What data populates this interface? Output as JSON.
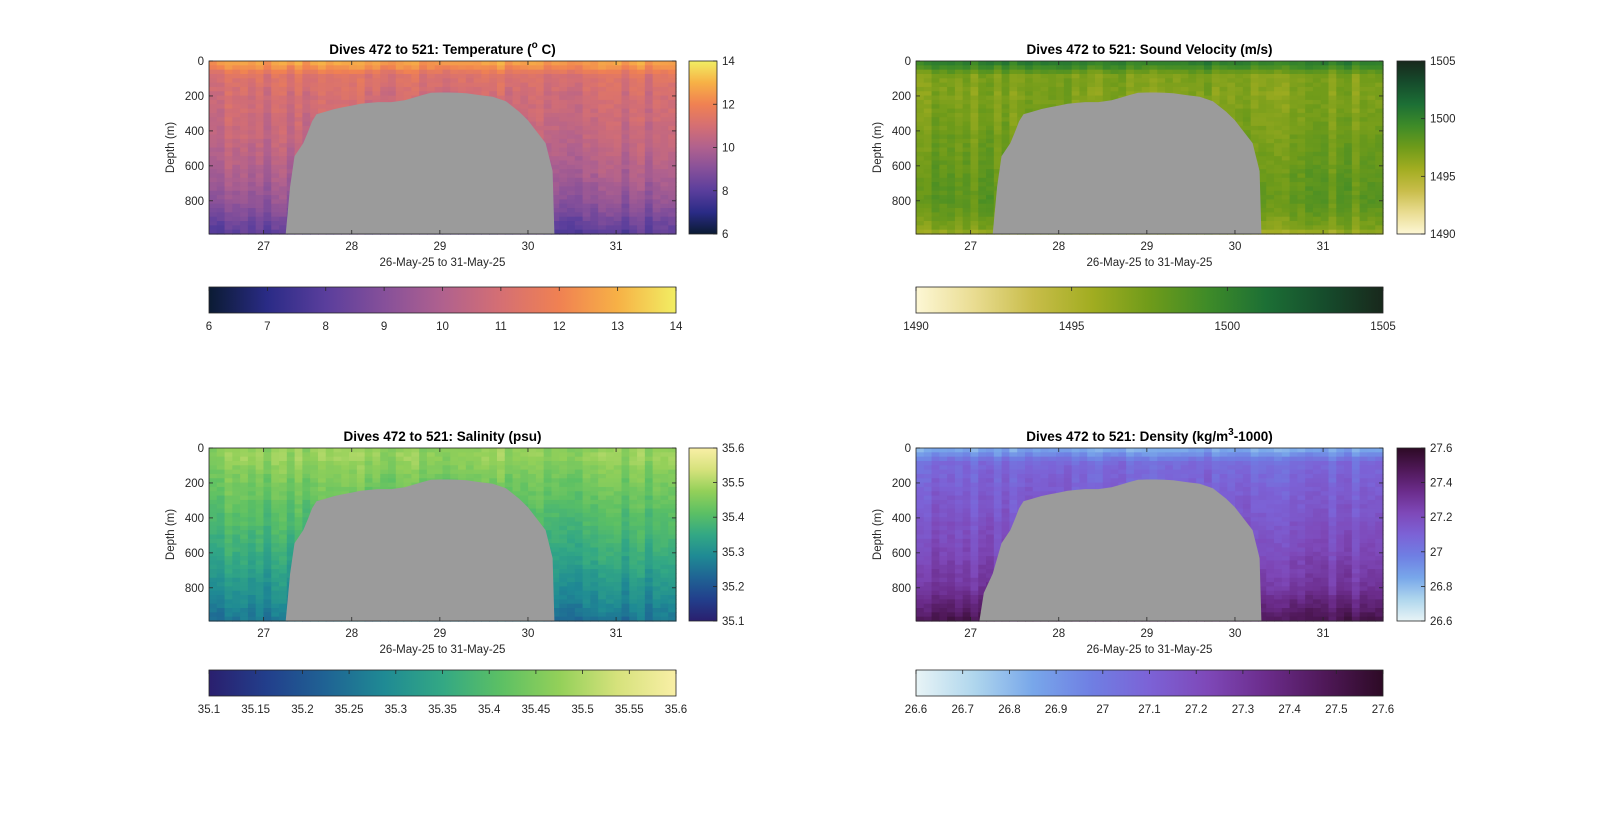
{
  "figure": {
    "background": "#ffffff",
    "seafloor_color": "#9b9b9b"
  },
  "chart_data": [
    {
      "type": "heatmap",
      "title": "Dives 472 to 521: Temperature (",
      "title_super": "o",
      "title_tail": " C)",
      "xlabel": "26-May-25 to 31-May-25",
      "ylabel": "Depth (m)",
      "x_ticks": [
        "27",
        "28",
        "29",
        "30",
        "31"
      ],
      "x_tick_values": [
        27,
        28,
        29,
        30,
        31
      ],
      "xlim": [
        26.38,
        31.68
      ],
      "y_ticks": [
        "0",
        "200",
        "400",
        "600",
        "800"
      ],
      "y_tick_values": [
        0,
        200,
        400,
        600,
        800
      ],
      "ylim": [
        0,
        990
      ],
      "colormap": [
        "#0b1b33",
        "#2a2b86",
        "#5a3e9c",
        "#86509a",
        "#b0618e",
        "#d56f73",
        "#f08152",
        "#f7b146",
        "#f1ee63"
      ],
      "clim": [
        6,
        14
      ],
      "colorbar_side": {
        "ticks": [
          "6",
          "8",
          "10",
          "12",
          "14"
        ],
        "values": [
          6,
          8,
          10,
          12,
          14
        ]
      },
      "colorbar_bottom": {
        "ticks": [
          "6",
          "7",
          "8",
          "9",
          "10",
          "11",
          "12",
          "13",
          "14"
        ],
        "values": [
          6,
          7,
          8,
          9,
          10,
          11,
          12,
          13,
          14
        ]
      },
      "profile": [
        [
          0,
          12.8
        ],
        [
          30,
          12.4
        ],
        [
          80,
          11.3
        ],
        [
          200,
          10.9
        ],
        [
          400,
          10.6
        ],
        [
          600,
          10.1
        ],
        [
          800,
          9.3
        ],
        [
          900,
          8.6
        ],
        [
          990,
          8.0
        ]
      ],
      "bathymetry": [
        [
          27.25,
          990
        ],
        [
          27.3,
          720
        ],
        [
          27.35,
          545
        ],
        [
          27.45,
          470
        ],
        [
          27.5,
          410
        ],
        [
          27.55,
          345
        ],
        [
          27.6,
          305
        ],
        [
          27.7,
          290
        ],
        [
          27.8,
          275
        ],
        [
          27.9,
          265
        ],
        [
          28.0,
          255
        ],
        [
          28.1,
          245
        ],
        [
          28.2,
          240
        ],
        [
          28.3,
          235
        ],
        [
          28.45,
          235
        ],
        [
          28.6,
          225
        ],
        [
          28.7,
          210
        ],
        [
          28.8,
          195
        ],
        [
          28.9,
          182
        ],
        [
          29.0,
          180
        ],
        [
          29.1,
          180
        ],
        [
          29.2,
          182
        ],
        [
          29.3,
          185
        ],
        [
          29.45,
          195
        ],
        [
          29.6,
          205
        ],
        [
          29.75,
          230
        ],
        [
          29.9,
          290
        ],
        [
          30.0,
          340
        ],
        [
          30.1,
          405
        ],
        [
          30.2,
          470
        ],
        [
          30.28,
          630
        ],
        [
          30.3,
          990
        ]
      ]
    },
    {
      "type": "heatmap",
      "title": "Dives 472 to 521: Sound Velocity (m/s)",
      "title_super": "",
      "title_tail": "",
      "xlabel": "26-May-25 to 31-May-25",
      "ylabel": "Depth (m)",
      "x_ticks": [
        "27",
        "28",
        "29",
        "30",
        "31"
      ],
      "x_tick_values": [
        27,
        28,
        29,
        30,
        31
      ],
      "xlim": [
        26.38,
        31.68
      ],
      "y_ticks": [
        "0",
        "200",
        "400",
        "600",
        "800"
      ],
      "y_tick_values": [
        0,
        200,
        400,
        600,
        800
      ],
      "ylim": [
        0,
        990
      ],
      "colormap": [
        "#fdf7d5",
        "#e9dc91",
        "#c8bd4a",
        "#a2ad21",
        "#6f9b1a",
        "#3e8b28",
        "#1c6f35",
        "#164c2c",
        "#18281c"
      ],
      "clim": [
        1490,
        1505
      ],
      "colorbar_side": {
        "ticks": [
          "1490",
          "1495",
          "1500",
          "1505"
        ],
        "values": [
          1490,
          1495,
          1500,
          1505
        ]
      },
      "colorbar_bottom": {
        "ticks": [
          "1490",
          "1495",
          "1500",
          "1505"
        ],
        "values": [
          1490,
          1495,
          1500,
          1505
        ]
      },
      "profile": [
        [
          0,
          1500.5
        ],
        [
          30,
          1499.5
        ],
        [
          80,
          1497.0
        ],
        [
          200,
          1496.8
        ],
        [
          400,
          1497.3
        ],
        [
          600,
          1497.8
        ],
        [
          800,
          1498.2
        ],
        [
          950,
          1497.0
        ],
        [
          990,
          1495.5
        ]
      ],
      "bathymetry": [
        [
          27.25,
          990
        ],
        [
          27.3,
          720
        ],
        [
          27.35,
          545
        ],
        [
          27.45,
          470
        ],
        [
          27.5,
          410
        ],
        [
          27.55,
          345
        ],
        [
          27.6,
          305
        ],
        [
          27.7,
          290
        ],
        [
          27.8,
          275
        ],
        [
          27.9,
          265
        ],
        [
          28.0,
          255
        ],
        [
          28.1,
          245
        ],
        [
          28.2,
          240
        ],
        [
          28.3,
          235
        ],
        [
          28.45,
          235
        ],
        [
          28.6,
          225
        ],
        [
          28.7,
          210
        ],
        [
          28.8,
          195
        ],
        [
          28.9,
          182
        ],
        [
          29.0,
          180
        ],
        [
          29.1,
          180
        ],
        [
          29.2,
          182
        ],
        [
          29.3,
          185
        ],
        [
          29.45,
          195
        ],
        [
          29.6,
          205
        ],
        [
          29.75,
          230
        ],
        [
          29.9,
          290
        ],
        [
          30.0,
          340
        ],
        [
          30.1,
          405
        ],
        [
          30.2,
          470
        ],
        [
          30.28,
          630
        ],
        [
          30.3,
          990
        ]
      ]
    },
    {
      "type": "heatmap",
      "title": "Dives 472 to 521: Salinity (psu)",
      "title_super": "",
      "title_tail": "",
      "xlabel": "26-May-25 to 31-May-25",
      "ylabel": "Depth (m)",
      "x_ticks": [
        "27",
        "28",
        "29",
        "30",
        "31"
      ],
      "x_tick_values": [
        27,
        28,
        29,
        30,
        31
      ],
      "xlim": [
        26.38,
        31.68
      ],
      "y_ticks": [
        "0",
        "200",
        "400",
        "600",
        "800"
      ],
      "y_tick_values": [
        0,
        200,
        400,
        600,
        800
      ],
      "ylim": [
        0,
        990
      ],
      "colormap": [
        "#2a1f6e",
        "#223f8c",
        "#1f6394",
        "#1f8a94",
        "#33a884",
        "#5cc064",
        "#93d059",
        "#d6e27c",
        "#f9efa6"
      ],
      "clim": [
        35.1,
        35.6
      ],
      "colorbar_side": {
        "ticks": [
          "35.1",
          "35.2",
          "35.3",
          "35.4",
          "35.5",
          "35.6"
        ],
        "values": [
          35.1,
          35.2,
          35.3,
          35.4,
          35.5,
          35.6
        ]
      },
      "colorbar_bottom": {
        "ticks": [
          "35.1",
          "35.15",
          "35.2",
          "35.25",
          "35.3",
          "35.35",
          "35.4",
          "35.45",
          "35.5",
          "35.55",
          "35.6"
        ],
        "values": [
          35.1,
          35.15,
          35.2,
          35.25,
          35.3,
          35.35,
          35.4,
          35.45,
          35.5,
          35.55,
          35.6
        ]
      },
      "profile": [
        [
          0,
          35.47
        ],
        [
          50,
          35.48
        ],
        [
          150,
          35.45
        ],
        [
          300,
          35.42
        ],
        [
          450,
          35.39
        ],
        [
          600,
          35.36
        ],
        [
          750,
          35.32
        ],
        [
          900,
          35.28
        ],
        [
          990,
          35.25
        ]
      ],
      "bathymetry": [
        [
          27.25,
          990
        ],
        [
          27.3,
          720
        ],
        [
          27.35,
          545
        ],
        [
          27.45,
          470
        ],
        [
          27.5,
          410
        ],
        [
          27.55,
          345
        ],
        [
          27.6,
          305
        ],
        [
          27.7,
          290
        ],
        [
          27.8,
          275
        ],
        [
          27.9,
          265
        ],
        [
          28.0,
          255
        ],
        [
          28.1,
          245
        ],
        [
          28.2,
          240
        ],
        [
          28.3,
          235
        ],
        [
          28.45,
          235
        ],
        [
          28.6,
          225
        ],
        [
          28.7,
          210
        ],
        [
          28.8,
          195
        ],
        [
          28.9,
          182
        ],
        [
          29.0,
          180
        ],
        [
          29.1,
          180
        ],
        [
          29.2,
          182
        ],
        [
          29.3,
          185
        ],
        [
          29.45,
          195
        ],
        [
          29.6,
          205
        ],
        [
          29.75,
          230
        ],
        [
          29.9,
          290
        ],
        [
          30.0,
          340
        ],
        [
          30.1,
          405
        ],
        [
          30.2,
          470
        ],
        [
          30.28,
          630
        ],
        [
          30.3,
          990
        ]
      ]
    },
    {
      "type": "heatmap",
      "title": "Dives 472 to 521: Density (kg/m",
      "title_super": "3",
      "title_tail": "-1000)",
      "xlabel": "26-May-25 to 31-May-25",
      "ylabel": "Depth (m)",
      "x_ticks": [
        "27",
        "28",
        "29",
        "30",
        "31"
      ],
      "x_tick_values": [
        27,
        28,
        29,
        30,
        31
      ],
      "xlim": [
        26.38,
        31.68
      ],
      "y_ticks": [
        "0",
        "200",
        "400",
        "600",
        "800"
      ],
      "y_tick_values": [
        0,
        200,
        400,
        600,
        800
      ],
      "ylim": [
        0,
        990
      ],
      "colormap": [
        "#e8f4f6",
        "#afd6ed",
        "#78a7ea",
        "#6f7fe3",
        "#7c62d6",
        "#7e48b8",
        "#6b2c8b",
        "#4f1858",
        "#2d0a25"
      ],
      "clim": [
        26.6,
        27.6
      ],
      "colorbar_side": {
        "ticks": [
          "26.6",
          "26.8",
          "27",
          "27.2",
          "27.4",
          "27.6"
        ],
        "values": [
          26.6,
          26.8,
          27.0,
          27.2,
          27.4,
          27.6
        ]
      },
      "colorbar_bottom": {
        "ticks": [
          "26.6",
          "26.7",
          "26.8",
          "26.9",
          "27",
          "27.1",
          "27.2",
          "27.3",
          "27.4",
          "27.5",
          "27.6"
        ],
        "values": [
          26.6,
          26.7,
          26.8,
          26.9,
          27.0,
          27.1,
          27.2,
          27.3,
          27.4,
          27.5,
          27.6
        ]
      },
      "profile": [
        [
          0,
          26.82
        ],
        [
          30,
          26.9
        ],
        [
          80,
          27.06
        ],
        [
          200,
          27.1
        ],
        [
          400,
          27.16
        ],
        [
          600,
          27.22
        ],
        [
          800,
          27.3
        ],
        [
          900,
          27.4
        ],
        [
          990,
          27.5
        ]
      ],
      "bathymetry": [
        [
          27.1,
          990
        ],
        [
          27.15,
          830
        ],
        [
          27.25,
          720
        ],
        [
          27.35,
          545
        ],
        [
          27.45,
          470
        ],
        [
          27.5,
          410
        ],
        [
          27.55,
          345
        ],
        [
          27.6,
          305
        ],
        [
          27.7,
          290
        ],
        [
          27.8,
          275
        ],
        [
          27.9,
          265
        ],
        [
          28.0,
          255
        ],
        [
          28.1,
          245
        ],
        [
          28.2,
          240
        ],
        [
          28.3,
          235
        ],
        [
          28.45,
          235
        ],
        [
          28.6,
          225
        ],
        [
          28.7,
          210
        ],
        [
          28.8,
          195
        ],
        [
          28.9,
          182
        ],
        [
          29.0,
          180
        ],
        [
          29.1,
          180
        ],
        [
          29.2,
          182
        ],
        [
          29.3,
          185
        ],
        [
          29.45,
          195
        ],
        [
          29.6,
          205
        ],
        [
          29.75,
          230
        ],
        [
          29.9,
          290
        ],
        [
          30.0,
          340
        ],
        [
          30.1,
          405
        ],
        [
          30.2,
          470
        ],
        [
          30.28,
          630
        ],
        [
          30.3,
          990
        ]
      ]
    }
  ]
}
